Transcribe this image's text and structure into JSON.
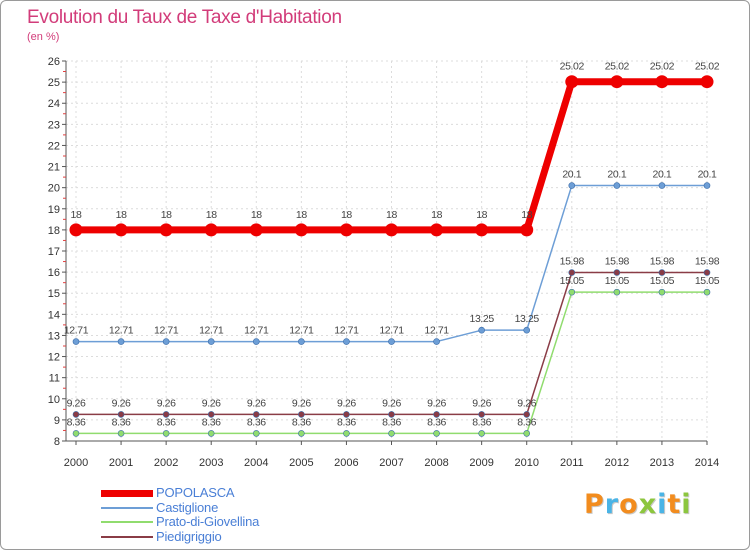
{
  "title": "Evolution du Taux de Taxe d'Habitation",
  "subtitle": "(en %)",
  "logo": {
    "text": "Proxiti",
    "letters": [
      {
        "ch": "P",
        "color": "#f28c1e"
      },
      {
        "ch": "r",
        "color": "#4ab4e6"
      },
      {
        "ch": "o",
        "color": "#f28c1e"
      },
      {
        "ch": "x",
        "color": "#8cc63e"
      },
      {
        "ch": "i",
        "color": "#4ab4e6"
      },
      {
        "ch": "t",
        "color": "#f28c1e"
      },
      {
        "ch": "i",
        "color": "#8cc63e"
      }
    ]
  },
  "chart_data": {
    "type": "line",
    "x": [
      2000,
      2001,
      2002,
      2003,
      2004,
      2005,
      2006,
      2007,
      2008,
      2009,
      2010,
      2011,
      2012,
      2013,
      2014
    ],
    "ylim": [
      8,
      26
    ],
    "yticks": [
      8,
      9,
      10,
      11,
      12,
      13,
      14,
      15,
      16,
      17,
      18,
      19,
      20,
      21,
      22,
      23,
      24,
      25,
      26
    ],
    "grid": true,
    "legend_position": "bottom-left",
    "series": [
      {
        "name": "POPOLASCA",
        "color": "#ee0000",
        "emphasis": true,
        "values": [
          18,
          18,
          18,
          18,
          18,
          18,
          18,
          18,
          18,
          18,
          18,
          25.02,
          25.02,
          25.02,
          25.02
        ],
        "labels": [
          "18",
          "18",
          "18",
          "18",
          "18",
          "18",
          "18",
          "18",
          "18",
          "18",
          "18",
          "25.02",
          "25.02",
          "25.02",
          "25.02"
        ]
      },
      {
        "name": "Castiglione",
        "color": "#6d9ed6",
        "emphasis": false,
        "values": [
          12.71,
          12.71,
          12.71,
          12.71,
          12.71,
          12.71,
          12.71,
          12.71,
          12.71,
          13.25,
          13.25,
          20.1,
          20.1,
          20.1,
          20.1
        ],
        "labels": [
          "12.71",
          "12.71",
          "12.71",
          "12.71",
          "12.71",
          "12.71",
          "12.71",
          "12.71",
          "12.71",
          "13.25",
          "13.25",
          "20.1",
          "20.1",
          "20.1",
          "20.1"
        ]
      },
      {
        "name": "Prato-di-Giovellina",
        "color": "#90dc6e",
        "emphasis": false,
        "values": [
          8.36,
          8.36,
          8.36,
          8.36,
          8.36,
          8.36,
          8.36,
          8.36,
          8.36,
          8.36,
          8.36,
          15.05,
          15.05,
          15.05,
          15.05
        ],
        "labels": [
          "8.36",
          "8.36",
          "8.36",
          "8.36",
          "8.36",
          "8.36",
          "8.36",
          "8.36",
          "8.36",
          "8.36",
          "8.36",
          "15.05",
          "15.05",
          "15.05",
          "15.05"
        ]
      },
      {
        "name": "Piedigriggio",
        "color": "#8a3c46",
        "emphasis": false,
        "values": [
          9.26,
          9.26,
          9.26,
          9.26,
          9.26,
          9.26,
          9.26,
          9.26,
          9.26,
          9.26,
          9.26,
          15.98,
          15.98,
          15.98,
          15.98
        ],
        "labels": [
          "9.26",
          "9.26",
          "9.26",
          "9.26",
          "9.26",
          "9.26",
          "9.26",
          "9.26",
          "9.26",
          "9.26",
          "9.26",
          "15.98",
          "15.98",
          "15.98",
          "15.98"
        ]
      }
    ]
  }
}
